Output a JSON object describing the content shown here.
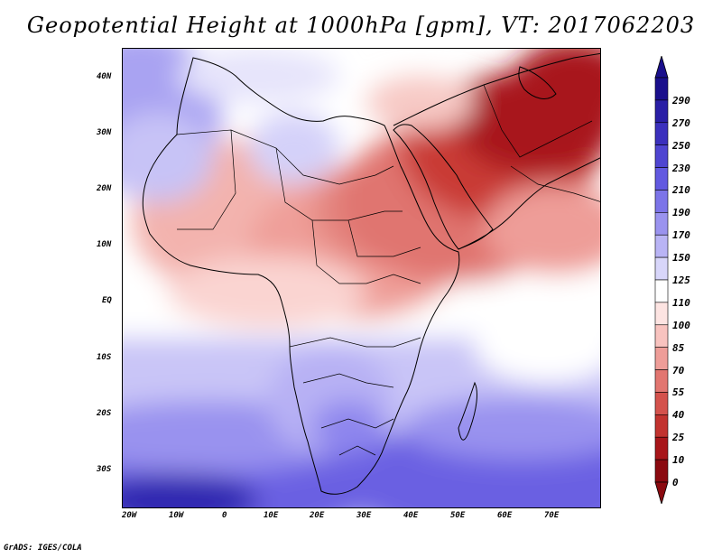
{
  "title": "Geopotential Height at 1000hPa [gpm], VT: 2017062203",
  "credit": "GrADS: IGES/COLA",
  "map": {
    "region": "Africa and Middle East",
    "lat_labels": [
      "40N",
      "30N",
      "20N",
      "10N",
      "EQ",
      "10S",
      "20S",
      "30S"
    ],
    "lon_labels": [
      "20W",
      "10W",
      "0",
      "10E",
      "20E",
      "30E",
      "40E",
      "50E",
      "60E",
      "70E"
    ]
  },
  "colorbar": {
    "levels": [
      "290",
      "270",
      "250",
      "230",
      "210",
      "190",
      "170",
      "150",
      "125",
      "110",
      "100",
      "85",
      "70",
      "55",
      "40",
      "25",
      "10",
      "0"
    ],
    "colors": [
      "#1a0f8c",
      "#2a1fa6",
      "#3b30bd",
      "#4f45d1",
      "#6259e0",
      "#7c74e8",
      "#9a93ef",
      "#b9b4f5",
      "#d8d6fa",
      "#ffffff",
      "#fde4e2",
      "#f8c3bf",
      "#ee9d98",
      "#e27670",
      "#d4524c",
      "#c2332f",
      "#a8161a",
      "#8b0a10"
    ]
  }
}
